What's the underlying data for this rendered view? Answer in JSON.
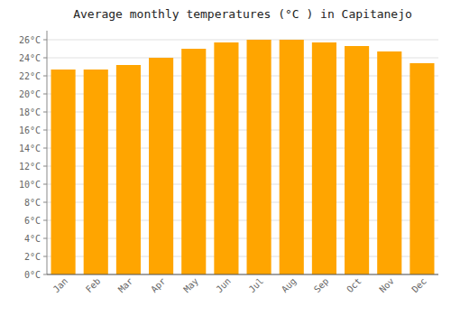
{
  "chart_data": {
    "type": "bar",
    "title": "Average monthly temperatures (°C ) in Capitanejo",
    "categories": [
      "Jan",
      "Feb",
      "Mar",
      "Apr",
      "May",
      "Jun",
      "Jul",
      "Aug",
      "Sep",
      "Oct",
      "Nov",
      "Dec"
    ],
    "values": [
      22.7,
      22.7,
      23.2,
      24.0,
      25.0,
      25.7,
      26.0,
      26.0,
      25.7,
      25.3,
      24.7,
      23.4
    ],
    "color": "#FFA500",
    "ylim": [
      0,
      27
    ],
    "yticks": [
      {
        "value": 0,
        "label": "0°C"
      },
      {
        "value": 2,
        "label": "2°C"
      },
      {
        "value": 4,
        "label": "4°C"
      },
      {
        "value": 6,
        "label": "6°C"
      },
      {
        "value": 8,
        "label": "8°C"
      },
      {
        "value": 10,
        "label": "10°C"
      },
      {
        "value": 12,
        "label": "12°C"
      },
      {
        "value": 14,
        "label": "14°C"
      },
      {
        "value": 16,
        "label": "16°C"
      },
      {
        "value": 18,
        "label": "18°C"
      },
      {
        "value": 20,
        "label": "20°C"
      },
      {
        "value": 22,
        "label": "22°C"
      },
      {
        "value": 24,
        "label": "24°C"
      },
      {
        "value": 26,
        "label": "26°C"
      }
    ],
    "grid": true
  }
}
